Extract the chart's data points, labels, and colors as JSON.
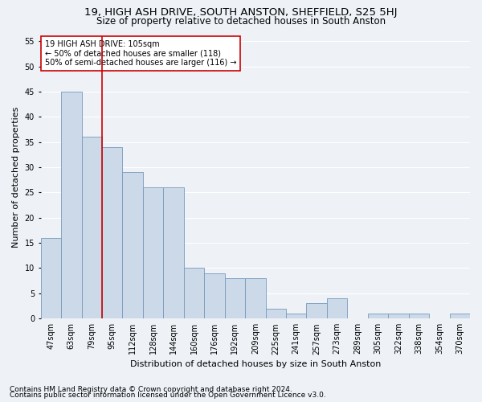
{
  "title1": "19, HIGH ASH DRIVE, SOUTH ANSTON, SHEFFIELD, S25 5HJ",
  "title2": "Size of property relative to detached houses in South Anston",
  "xlabel": "Distribution of detached houses by size in South Anston",
  "ylabel": "Number of detached properties",
  "categories": [
    "47sqm",
    "63sqm",
    "79sqm",
    "95sqm",
    "112sqm",
    "128sqm",
    "144sqm",
    "160sqm",
    "176sqm",
    "192sqm",
    "209sqm",
    "225sqm",
    "241sqm",
    "257sqm",
    "273sqm",
    "289sqm",
    "305sqm",
    "322sqm",
    "338sqm",
    "354sqm",
    "370sqm"
  ],
  "values": [
    16,
    45,
    36,
    34,
    29,
    26,
    26,
    10,
    9,
    8,
    8,
    2,
    1,
    3,
    4,
    0,
    1,
    1,
    1,
    0,
    1
  ],
  "bar_color": "#ccd9e8",
  "bar_edge_color": "#7799bb",
  "vline_x": 2.5,
  "vline_color": "#cc0000",
  "annotation_text": "19 HIGH ASH DRIVE: 105sqm\n← 50% of detached houses are smaller (118)\n50% of semi-detached houses are larger (116) →",
  "annotation_box_facecolor": "#ffffff",
  "annotation_box_edgecolor": "#cc0000",
  "ylim": [
    0,
    56
  ],
  "yticks": [
    0,
    5,
    10,
    15,
    20,
    25,
    30,
    35,
    40,
    45,
    50,
    55
  ],
  "background_color": "#eef2f7",
  "grid_color": "#ffffff",
  "footer1": "Contains HM Land Registry data © Crown copyright and database right 2024.",
  "footer2": "Contains public sector information licensed under the Open Government Licence v3.0.",
  "title1_fontsize": 9.5,
  "title2_fontsize": 8.5,
  "axis_label_fontsize": 8,
  "tick_fontsize": 7,
  "annotation_fontsize": 7,
  "footer_fontsize": 6.5
}
